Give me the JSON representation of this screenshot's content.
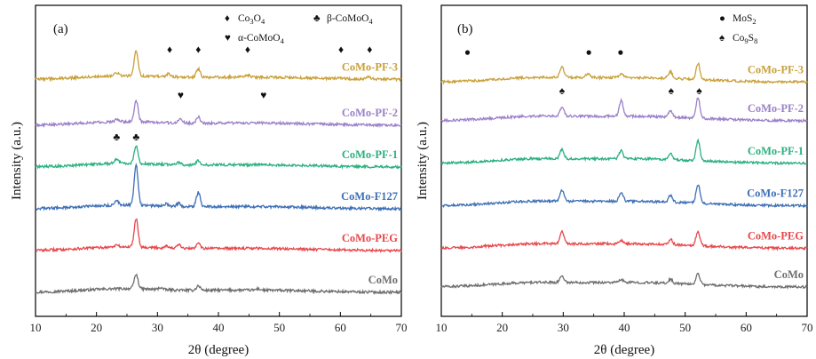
{
  "chart_data": [
    {
      "type": "line",
      "panel": "(a)",
      "xlabel": "2θ (degree)",
      "ylabel": "Intensity (a.u.)",
      "xlim": [
        10,
        70
      ],
      "x_ticks": [
        10,
        20,
        30,
        40,
        50,
        60,
        70
      ],
      "y_ticks_labeled": false,
      "grid": false,
      "legend": {
        "placement": "top-right",
        "entries": [
          {
            "symbol": "♦",
            "sub": [
              "Co",
              "3",
              "O",
              "4"
            ],
            "text": "Co3O4"
          },
          {
            "symbol": "♣",
            "sub": [
              "β-CoMoO",
              "4"
            ],
            "text": "β-CoMoO4"
          },
          {
            "symbol": "♥",
            "sub": [
              "α-CoMoO",
              "4"
            ],
            "text": "α-CoMoO4"
          }
        ]
      },
      "series": [
        {
          "name": "CoMo",
          "color": "#6e6e6e",
          "offset": 0.0,
          "peaks": [
            {
              "x": 26.5,
              "h": 0.5
            },
            {
              "x": 36.7,
              "h": 0.16
            },
            {
              "x": 30.5,
              "h": 0.07
            },
            {
              "x": 46.5,
              "h": 0.05
            }
          ]
        },
        {
          "name": "CoMo-PEG",
          "color": "#e8474b",
          "offset": 1.0,
          "peaks": [
            {
              "x": 26.5,
              "h": 1.0
            },
            {
              "x": 36.7,
              "h": 0.22
            },
            {
              "x": 33.5,
              "h": 0.12
            },
            {
              "x": 31.5,
              "h": 0.08
            },
            {
              "x": 23.3,
              "h": 0.07
            }
          ]
        },
        {
          "name": "CoMo-F127",
          "color": "#3d6fb6",
          "offset": 2.0,
          "peaks": [
            {
              "x": 26.5,
              "h": 1.4
            },
            {
              "x": 36.7,
              "h": 0.5
            },
            {
              "x": 33.5,
              "h": 0.12
            },
            {
              "x": 31.5,
              "h": 0.08
            },
            {
              "x": 23.3,
              "h": 0.16
            }
          ]
        },
        {
          "name": "CoMo-PF-1",
          "color": "#2bb07f",
          "offset": 3.0,
          "peaks": [
            {
              "x": 26.5,
              "h": 0.6
            },
            {
              "x": 23.3,
              "h": 0.16
            },
            {
              "x": 36.7,
              "h": 0.16
            },
            {
              "x": 33.5,
              "h": 0.08
            }
          ]
        },
        {
          "name": "CoMo-PF-2",
          "color": "#9b80c8",
          "offset": 4.0,
          "peaks": [
            {
              "x": 26.5,
              "h": 0.75
            },
            {
              "x": 33.8,
              "h": 0.16
            },
            {
              "x": 36.7,
              "h": 0.22
            },
            {
              "x": 23.3,
              "h": 0.08
            }
          ]
        },
        {
          "name": "CoMo-PF-3",
          "color": "#c9a03a",
          "offset": 5.1,
          "peaks": [
            {
              "x": 26.5,
              "h": 0.9
            },
            {
              "x": 36.7,
              "h": 0.3
            },
            {
              "x": 31.8,
              "h": 0.1
            },
            {
              "x": 44.8,
              "h": 0.06
            },
            {
              "x": 59.8,
              "h": 0.05
            },
            {
              "x": 64.7,
              "h": 0.07
            },
            {
              "x": 23.3,
              "h": 0.1
            }
          ]
        }
      ],
      "markers": [
        {
          "symbol": "♦",
          "x": 32.0,
          "series": "CoMo-PF-3"
        },
        {
          "symbol": "♦",
          "x": 36.7,
          "series": "CoMo-PF-3"
        },
        {
          "symbol": "♦",
          "x": 44.8,
          "series": "CoMo-PF-3"
        },
        {
          "symbol": "♦",
          "x": 60.1,
          "series": "CoMo-PF-3"
        },
        {
          "symbol": "♦",
          "x": 64.8,
          "series": "CoMo-PF-3"
        },
        {
          "symbol": "♥",
          "x": 33.8,
          "series": "CoMo-PF-2"
        },
        {
          "symbol": "♥",
          "x": 47.4,
          "series": "CoMo-PF-2"
        },
        {
          "symbol": "♣",
          "x": 23.3,
          "series": "CoMo-PF-1"
        },
        {
          "symbol": "♣",
          "x": 26.5,
          "series": "CoMo-PF-1"
        }
      ]
    },
    {
      "type": "line",
      "panel": "(b)",
      "xlabel": "2θ (degree)",
      "ylabel": "Intensity (a.u.)",
      "xlim": [
        10,
        70
      ],
      "x_ticks": [
        10,
        20,
        30,
        40,
        50,
        60,
        70
      ],
      "y_ticks_labeled": false,
      "grid": false,
      "legend": {
        "placement": "top-right",
        "entries": [
          {
            "symbol": "●",
            "sub": [
              "MoS",
              "2"
            ],
            "text": "MoS2"
          },
          {
            "symbol": "♠",
            "sub": [
              "Co",
              "9",
              "S",
              "8"
            ],
            "text": "Co9S8"
          }
        ]
      },
      "series": [
        {
          "name": "CoMo",
          "color": "#6e6e6e",
          "offset": 0.0,
          "peaks": [
            {
              "x": 29.8,
              "h": 0.25
            },
            {
              "x": 47.6,
              "h": 0.15
            },
            {
              "x": 52.1,
              "h": 0.4
            },
            {
              "x": 39.5,
              "h": 0.1
            }
          ]
        },
        {
          "name": "CoMo-PEG",
          "color": "#e8474b",
          "offset": 1.0,
          "peaks": [
            {
              "x": 29.8,
              "h": 0.45
            },
            {
              "x": 47.6,
              "h": 0.2
            },
            {
              "x": 52.1,
              "h": 0.55
            },
            {
              "x": 39.5,
              "h": 0.12
            }
          ]
        },
        {
          "name": "CoMo-F127",
          "color": "#3d6fb6",
          "offset": 2.1,
          "peaks": [
            {
              "x": 29.8,
              "h": 0.4
            },
            {
              "x": 39.5,
              "h": 0.35
            },
            {
              "x": 47.6,
              "h": 0.25
            },
            {
              "x": 52.1,
              "h": 0.7
            }
          ]
        },
        {
          "name": "CoMo-PF-1",
          "color": "#2bb07f",
          "offset": 3.2,
          "peaks": [
            {
              "x": 29.8,
              "h": 0.35
            },
            {
              "x": 39.5,
              "h": 0.3
            },
            {
              "x": 47.6,
              "h": 0.22
            },
            {
              "x": 52.1,
              "h": 0.75
            }
          ]
        },
        {
          "name": "CoMo-PF-2",
          "color": "#9b80c8",
          "offset": 4.3,
          "peaks": [
            {
              "x": 29.8,
              "h": 0.35
            },
            {
              "x": 39.5,
              "h": 0.6
            },
            {
              "x": 47.6,
              "h": 0.22
            },
            {
              "x": 52.1,
              "h": 0.75
            }
          ]
        },
        {
          "name": "CoMo-PF-3",
          "color": "#c9a03a",
          "offset": 5.3,
          "peaks": [
            {
              "x": 29.8,
              "h": 0.4
            },
            {
              "x": 34.0,
              "h": 0.15
            },
            {
              "x": 39.5,
              "h": 0.15
            },
            {
              "x": 47.6,
              "h": 0.25
            },
            {
              "x": 52.1,
              "h": 0.6
            }
          ]
        }
      ],
      "markers": [
        {
          "symbol": "●",
          "x": 14.3,
          "series": "CoMo-PF-3"
        },
        {
          "symbol": "●",
          "x": 34.2,
          "series": "CoMo-PF-3"
        },
        {
          "symbol": "●",
          "x": 39.4,
          "series": "CoMo-PF-3"
        },
        {
          "symbol": "♠",
          "x": 29.8,
          "series": "CoMo-PF-2"
        },
        {
          "symbol": "♠",
          "x": 47.7,
          "series": "CoMo-PF-2"
        },
        {
          "symbol": "♠",
          "x": 52.3,
          "series": "CoMo-PF-2"
        }
      ]
    }
  ]
}
